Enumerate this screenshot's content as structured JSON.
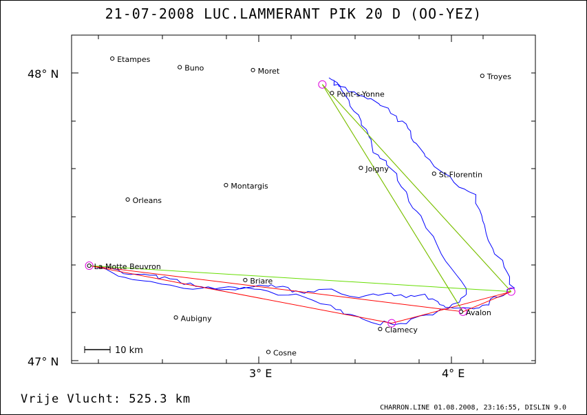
{
  "header": {
    "title": "21-07-2008   LUC.LAMMERANT   PIK 20 D (OO-YEZ)"
  },
  "axes": {
    "lat_ticks": [
      {
        "label": "48° N",
        "lat": 48
      },
      {
        "label": "47° N",
        "lat": 47
      }
    ],
    "lon_ticks": [
      {
        "label": "3° E",
        "lon": 3
      },
      {
        "label": "4° E",
        "lon": 4
      }
    ]
  },
  "scale_bar": {
    "label": "10 km"
  },
  "towns": [
    {
      "name": "Etampes",
      "lon": 2.24,
      "lat": 48.05
    },
    {
      "name": "Buno",
      "lon": 2.59,
      "lat": 48.02
    },
    {
      "name": "Moret",
      "lon": 2.97,
      "lat": 48.01
    },
    {
      "name": "Troyes",
      "lon": 4.16,
      "lat": 47.99
    },
    {
      "name": "Pont-s-Yonne",
      "lon": 3.38,
      "lat": 47.93
    },
    {
      "name": "Joigny",
      "lon": 3.53,
      "lat": 47.67
    },
    {
      "name": "St.Florentin",
      "lon": 3.91,
      "lat": 47.65
    },
    {
      "name": "Montargis",
      "lon": 2.83,
      "lat": 47.61
    },
    {
      "name": "Orleans",
      "lon": 2.32,
      "lat": 47.56
    },
    {
      "name": "La Motte Beuvron",
      "lon": 2.12,
      "lat": 47.33
    },
    {
      "name": "Briare",
      "lon": 2.93,
      "lat": 47.28
    },
    {
      "name": "Avalon",
      "lon": 4.05,
      "lat": 47.17
    },
    {
      "name": "Aubigny",
      "lon": 2.57,
      "lat": 47.15
    },
    {
      "name": "Clamecy",
      "lon": 3.63,
      "lat": 47.11
    },
    {
      "name": "Cosne",
      "lon": 3.05,
      "lat": 47.03
    }
  ],
  "turnpoints": [
    {
      "lon": 3.33,
      "lat": 47.96
    },
    {
      "lon": 4.31,
      "lat": 47.24
    },
    {
      "lon": 2.12,
      "lat": 47.33
    },
    {
      "lon": 3.69,
      "lat": 47.13
    },
    {
      "lon": 4.06,
      "lat": 47.17
    }
  ],
  "footer": {
    "distance_label": "Vrije Vlucht:  525.3 km",
    "source": "CHARRON.LINE 01.08.2008, 23:16:55, DISLIN 9.0"
  },
  "colors": {
    "track": "#0000ff",
    "task": "#ff0000",
    "free": "#66dd00",
    "turnpoint": "#dd00dd"
  }
}
